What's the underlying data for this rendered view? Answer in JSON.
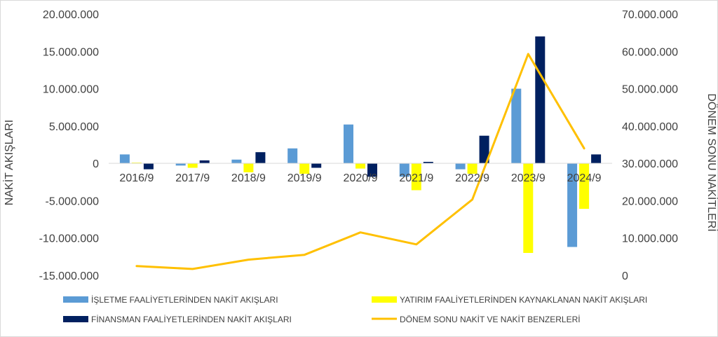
{
  "chart_data": {
    "type": "bar",
    "categories": [
      "2016/9",
      "2017/9",
      "2018/9",
      "2019/9",
      "2020/9",
      "2021/9",
      "2022/9",
      "2023/9",
      "2024/9"
    ],
    "series": [
      {
        "name": "İŞLETME FAALİYETLERİNDEN NAKİT AKIŞLARI",
        "type": "bar",
        "axis": "left",
        "color": "#5b9bd5",
        "values": [
          1200000,
          -300000,
          500000,
          2000000,
          5200000,
          -1800000,
          -800000,
          10000000,
          -11200000
        ]
      },
      {
        "name": "YATIRIM FAALİYETLERİNDEN KAYNAKLANAN NAKİT AKIŞLARI",
        "type": "bar",
        "axis": "left",
        "color": "#ffff00",
        "values": [
          100000,
          -600000,
          -1200000,
          -1400000,
          -700000,
          -3600000,
          -1400000,
          -12000000,
          -6100000
        ]
      },
      {
        "name": "FİNANSMAN FAALİYETLERİNDEN NAKİT AKIŞLARI",
        "type": "bar",
        "axis": "left",
        "color": "#002060",
        "values": [
          -800000,
          400000,
          1500000,
          -600000,
          -1800000,
          200000,
          3700000,
          17000000,
          1200000
        ]
      },
      {
        "name": "DÖNEM SONU NAKİT VE NAKİT BENZERLERİ",
        "type": "line",
        "axis": "right",
        "color": "#ffc000",
        "values": [
          2500000,
          1700000,
          4200000,
          5500000,
          11500000,
          8300000,
          20300000,
          59300000,
          34000000
        ]
      }
    ],
    "ylabel": "NAKİT AKIŞLARI",
    "y2label": "DÖNEM SONU NAKİTLERİ",
    "ylim": [
      -15000000,
      20000000
    ],
    "y2lim": [
      0,
      70000000
    ],
    "yticks": [
      "20.000.000",
      "15.000.000",
      "10.000.000",
      "5.000.000",
      "0",
      "-5.000.000",
      "-10.000.000",
      "-15.000.000"
    ],
    "y2ticks": [
      "70.000.000",
      "60.000.000",
      "50.000.000",
      "40.000.000",
      "30.000.000",
      "20.000.000",
      "10.000.000",
      "0"
    ],
    "grid": false,
    "legend": "bottom"
  }
}
